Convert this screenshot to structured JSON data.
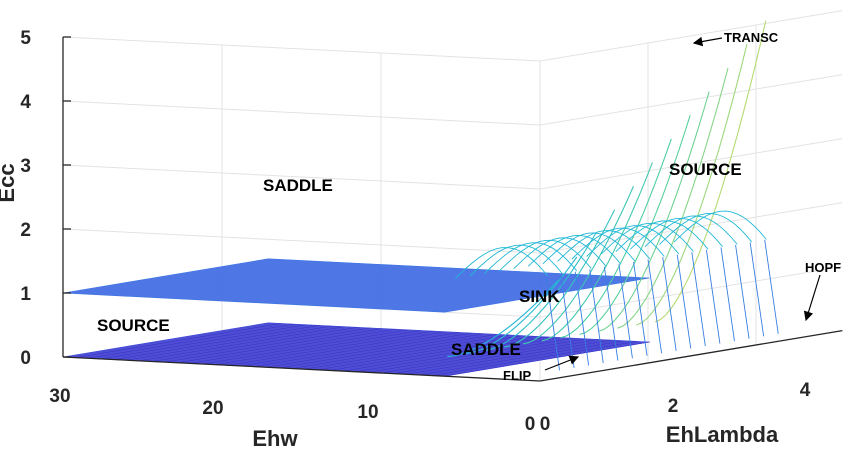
{
  "chart_data": {
    "type": "surface",
    "view": "3d",
    "grid": true,
    "x_axis": {
      "label": "Ehw",
      "ticks": [
        "30",
        "20",
        "10",
        "0"
      ],
      "range": [
        0,
        30
      ]
    },
    "y_axis": {
      "label": "EhLambda",
      "ticks": [
        "0",
        "2",
        "4"
      ],
      "range": [
        0,
        5
      ]
    },
    "z_axis": {
      "label": "Ecc",
      "ticks": [
        "0",
        "1",
        "2",
        "3",
        "4",
        "5"
      ],
      "range": [
        0,
        5
      ]
    },
    "colormap": [
      "#3b2bc8",
      "#3c6fe6",
      "#21b8d6",
      "#4fcfa0",
      "#e8e05a"
    ],
    "regions": [
      {
        "label": "SADDLE",
        "id": "saddle-upper"
      },
      {
        "label": "SOURCE",
        "id": "source-upper"
      },
      {
        "label": "SINK",
        "id": "sink"
      },
      {
        "label": "SOURCE",
        "id": "source-lower"
      },
      {
        "label": "SADDLE",
        "id": "saddle-lower"
      }
    ],
    "annotations": [
      {
        "label": "TRANSC",
        "id": "transc"
      },
      {
        "label": "HOPF",
        "id": "hopf"
      },
      {
        "label": "FLIP",
        "id": "flip"
      }
    ]
  }
}
